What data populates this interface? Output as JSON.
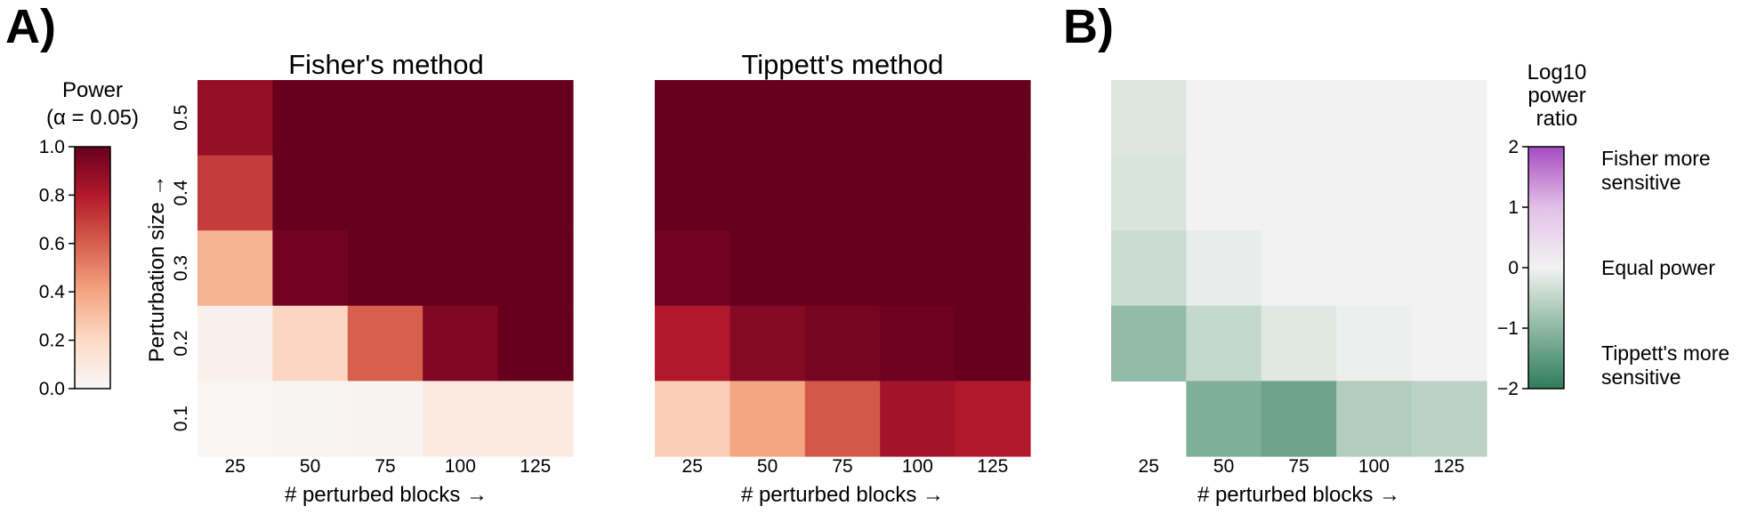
{
  "panels": {
    "a_label": "A)",
    "b_label": "B)"
  },
  "colorbar_power": {
    "title_line1": "Power",
    "title_line2": "(α = 0.05)",
    "ticks": [
      "0.0",
      "0.2",
      "0.4",
      "0.6",
      "0.8",
      "1.0"
    ],
    "range": [
      0,
      1
    ],
    "colors": [
      "#f7f7f7",
      "#fddbc7",
      "#f4a582",
      "#d6604d",
      "#b2182b",
      "#67001f"
    ]
  },
  "colorbar_ratio": {
    "title_lines": [
      "Log10",
      "power",
      "ratio"
    ],
    "ticks": [
      "−2",
      "−1",
      "0",
      "1",
      "2"
    ],
    "range": [
      -2,
      2
    ],
    "colors": [
      "#2e7d5b",
      "#8fb8a3",
      "#f2f2f2",
      "#e3c0e8",
      "#a64bc0"
    ],
    "annotations": {
      "top_line1": "Fisher more",
      "top_line2": "sensitive",
      "mid": "Equal power",
      "bottom_line1": "Tippett's more",
      "bottom_line2": "sensitive"
    }
  },
  "shared_axes": {
    "xlabel": "# perturbed blocks  →",
    "ylabel": "Perturbation size  →",
    "x_categories": [
      "25",
      "50",
      "75",
      "100",
      "125"
    ],
    "y_categories": [
      "0.5",
      "0.4",
      "0.3",
      "0.2",
      "0.1"
    ]
  },
  "chart_data": [
    {
      "type": "heatmap",
      "title": "Fisher's method",
      "x": [
        "25",
        "50",
        "75",
        "100",
        "125"
      ],
      "y": [
        "0.5",
        "0.4",
        "0.3",
        "0.2",
        "0.1"
      ],
      "xlabel": "# perturbed blocks  →",
      "ylabel": "Perturbation size  →",
      "color_range": [
        0,
        1
      ],
      "values": [
        [
          0.88,
          1.0,
          1.0,
          1.0,
          1.0
        ],
        [
          0.7,
          1.0,
          1.0,
          1.0,
          1.0
        ],
        [
          0.35,
          0.97,
          1.0,
          1.0,
          1.0
        ],
        [
          0.05,
          0.22,
          0.6,
          0.93,
          1.0
        ],
        [
          0.01,
          0.02,
          0.03,
          0.1,
          0.1
        ]
      ]
    },
    {
      "type": "heatmap",
      "title": "Tippett's method",
      "x": [
        "25",
        "50",
        "75",
        "100",
        "125"
      ],
      "y": [
        "0.5",
        "0.4",
        "0.3",
        "0.2",
        "0.1"
      ],
      "xlabel": "# perturbed blocks  →",
      "ylabel": "",
      "color_range": [
        0,
        1
      ],
      "values": [
        [
          1.0,
          1.0,
          1.0,
          1.0,
          1.0
        ],
        [
          1.0,
          1.0,
          1.0,
          1.0,
          1.0
        ],
        [
          0.97,
          1.0,
          1.0,
          1.0,
          1.0
        ],
        [
          0.8,
          0.92,
          0.96,
          0.98,
          1.0
        ],
        [
          0.25,
          0.4,
          0.62,
          0.84,
          0.8
        ]
      ]
    },
    {
      "type": "heatmap",
      "title": "",
      "x": [
        "25",
        "50",
        "75",
        "100",
        "125"
      ],
      "y": [
        "0.5",
        "0.4",
        "0.3",
        "0.2",
        "0.1"
      ],
      "xlabel": "# perturbed blocks  →",
      "ylabel": "",
      "color_range": [
        -2,
        2
      ],
      "values": [
        [
          -0.2,
          0.0,
          0.0,
          0.0,
          0.0
        ],
        [
          -0.25,
          0.0,
          0.0,
          0.0,
          0.0
        ],
        [
          -0.4,
          -0.1,
          0.0,
          0.0,
          0.0
        ],
        [
          -0.95,
          -0.45,
          -0.18,
          -0.06,
          0.0
        ],
        [
          null,
          -1.15,
          -1.35,
          -0.65,
          -0.55
        ]
      ]
    }
  ]
}
